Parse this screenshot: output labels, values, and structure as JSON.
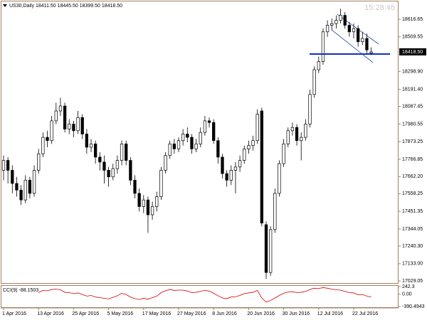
{
  "chart_data": {
    "type": "candlestick",
    "header": "US30,Daily  18411.50 18445.50 18399.50 18418.50",
    "clock": "15:28:46",
    "ylim": [
      17016,
      18724.5
    ],
    "yticks": [
      18616.65,
      18509.55,
      {
        "value": 18298.9,
        "label": "18298.90"
      },
      {
        "value": 18191.4,
        "label": "18191.40"
      },
      18087.45,
      17980.55,
      17873.25,
      17766.85,
      {
        "value": 17662.2,
        "label": "17662.20"
      },
      17558.25,
      17451.35,
      17344.05,
      {
        "value": 17240.3,
        "label": "17240.30"
      },
      {
        "value": 17133,
        "label": "17133.00"
      },
      17029.05
    ],
    "current_price": {
      "value": 18418.5,
      "label": "18418.50"
    },
    "support_level": 18405,
    "bull_color": "#ffffff",
    "bear_color": "#000000",
    "categories": [
      "1 Apr 2016",
      null,
      null,
      null,
      null,
      null,
      null,
      null,
      "13 Apr 2016",
      null,
      null,
      null,
      null,
      null,
      null,
      null,
      "25 Apr 2016",
      null,
      null,
      null,
      null,
      null,
      null,
      null,
      "5 May 2016",
      null,
      null,
      null,
      null,
      null,
      null,
      null,
      "17 May 2016",
      null,
      null,
      null,
      null,
      null,
      null,
      null,
      "27 May 2016",
      null,
      null,
      null,
      null,
      null,
      null,
      null,
      "8 Jun 2016",
      null,
      null,
      null,
      null,
      null,
      null,
      null,
      "20 Jun 2016",
      null,
      null,
      null,
      null,
      null,
      null,
      null,
      "30 Jun 2016",
      null,
      null,
      null,
      null,
      null,
      null,
      null,
      "12 Jul 2016",
      null,
      null,
      null,
      null,
      null,
      null,
      null,
      "22 Jul 2016",
      null,
      null,
      null,
      null
    ],
    "ohlc": [
      [
        17700,
        17790,
        17640,
        17760
      ],
      [
        17760,
        17780,
        17620,
        17700
      ],
      [
        17700,
        17730,
        17560,
        17620
      ],
      [
        17620,
        17660,
        17540,
        17580
      ],
      [
        17580,
        17610,
        17490,
        17520
      ],
      [
        17520,
        17670,
        17500,
        17640
      ],
      [
        17640,
        17660,
        17530,
        17560
      ],
      [
        17560,
        17730,
        17540,
        17700
      ],
      [
        17700,
        17830,
        17680,
        17800
      ],
      [
        17800,
        17930,
        17780,
        17900
      ],
      [
        17900,
        17940,
        17840,
        17880
      ],
      [
        17880,
        18030,
        17860,
        18000
      ],
      [
        18000,
        18110,
        17980,
        18060
      ],
      [
        18060,
        18140,
        18030,
        18090
      ],
      [
        18090,
        18110,
        17930,
        17950
      ],
      [
        17950,
        18010,
        17920,
        17980
      ],
      [
        17980,
        18000,
        17900,
        17940
      ],
      [
        17940,
        18060,
        17920,
        18020
      ],
      [
        18020,
        18040,
        17890,
        17920
      ],
      [
        17920,
        17950,
        17800,
        17840
      ],
      [
        17840,
        17890,
        17810,
        17860
      ],
      [
        17860,
        17880,
        17740,
        17780
      ],
      [
        17780,
        17810,
        17700,
        17750
      ],
      [
        17750,
        17790,
        17620,
        17700
      ],
      [
        17700,
        17720,
        17600,
        17660
      ],
      [
        17660,
        17740,
        17640,
        17710
      ],
      [
        17710,
        17790,
        17680,
        17760
      ],
      [
        17760,
        17880,
        17730,
        17860
      ],
      [
        17860,
        17880,
        17730,
        17760
      ],
      [
        17760,
        17780,
        17610,
        17640
      ],
      [
        17640,
        17670,
        17530,
        17560
      ],
      [
        17560,
        17590,
        17450,
        17480
      ],
      [
        17480,
        17550,
        17440,
        17520
      ],
      [
        17520,
        17540,
        17320,
        17430
      ],
      [
        17430,
        17510,
        17400,
        17480
      ],
      [
        17480,
        17570,
        17450,
        17540
      ],
      [
        17540,
        17720,
        17520,
        17700
      ],
      [
        17700,
        17810,
        17680,
        17790
      ],
      [
        17790,
        17880,
        17770,
        17860
      ],
      [
        17860,
        17890,
        17800,
        17830
      ],
      [
        17830,
        17900,
        17810,
        17880
      ],
      [
        17880,
        17950,
        17850,
        17920
      ],
      [
        17920,
        17960,
        17870,
        17900
      ],
      [
        17900,
        17920,
        17800,
        17830
      ],
      [
        17830,
        17890,
        17810,
        17860
      ],
      [
        17860,
        17960,
        17840,
        17930
      ],
      [
        17930,
        18030,
        17910,
        18000
      ],
      [
        18000,
        18020,
        17960,
        17990
      ],
      [
        17990,
        18010,
        17860,
        17880
      ],
      [
        17880,
        17900,
        17740,
        17780
      ],
      [
        17780,
        17800,
        17650,
        17680
      ],
      [
        17680,
        17700,
        17600,
        17640
      ],
      [
        17640,
        17730,
        17610,
        17700
      ],
      [
        17700,
        17750,
        17560,
        17720
      ],
      [
        17720,
        17790,
        17690,
        17760
      ],
      [
        17760,
        17850,
        17740,
        17830
      ],
      [
        17830,
        17880,
        17800,
        17850
      ],
      [
        17850,
        17910,
        17820,
        17880
      ],
      [
        17880,
        18070,
        17860,
        18040
      ],
      [
        18060,
        18080,
        17360,
        17380
      ],
      [
        17370,
        17390,
        17040,
        17080
      ],
      [
        17080,
        17360,
        17060,
        17340
      ],
      [
        17340,
        17590,
        17320,
        17560
      ],
      [
        17560,
        17760,
        17540,
        17740
      ],
      [
        17740,
        17890,
        17720,
        17860
      ],
      [
        17860,
        17960,
        17840,
        17940
      ],
      [
        17940,
        17990,
        17910,
        17960
      ],
      [
        17960,
        17980,
        17850,
        17880
      ],
      [
        17880,
        17930,
        17760,
        17900
      ],
      [
        17900,
        18010,
        17880,
        17980
      ],
      [
        17980,
        18190,
        17960,
        18160
      ],
      [
        18160,
        18330,
        18140,
        18310
      ],
      [
        18310,
        18390,
        18290,
        18360
      ],
      [
        18360,
        18560,
        18340,
        18540
      ],
      [
        18540,
        18610,
        18510,
        18580
      ],
      [
        18580,
        18620,
        18550,
        18590
      ],
      [
        18590,
        18640,
        18560,
        18610
      ],
      [
        18610,
        18680,
        18590,
        18640
      ],
      [
        18640,
        18660,
        18560,
        18580
      ],
      [
        18580,
        18600,
        18510,
        18540
      ],
      [
        18540,
        18590,
        18500,
        18560
      ],
      [
        18560,
        18580,
        18450,
        18480
      ],
      [
        18480,
        18540,
        18460,
        18500
      ],
      [
        18500,
        18530,
        18410,
        18430
      ],
      [
        18411.5,
        18445.5,
        18399.5,
        18418.5
      ]
    ],
    "indicator": {
      "label": "CCI(9) -88.1503",
      "color": "#d00000",
      "ylim": [
        -390.4943,
        242.3
      ],
      "yticks": [
        242.3,
        {
          "value": 0,
          "label": "0.00"
        },
        -390.4943
      ],
      "values": [
        null,
        null,
        null,
        null,
        null,
        null,
        null,
        null,
        50,
        120,
        110,
        150,
        160,
        140,
        60,
        50,
        20,
        40,
        -10,
        -60,
        -40,
        -90,
        -110,
        -130,
        -150,
        -100,
        -50,
        30,
        -10,
        -90,
        -140,
        -170,
        -130,
        -160,
        -110,
        -60,
        50,
        110,
        150,
        120,
        130,
        130,
        100,
        50,
        60,
        90,
        120,
        100,
        30,
        -50,
        -120,
        -140,
        -90,
        -80,
        -40,
        20,
        40,
        60,
        120,
        -120,
        -250,
        -200,
        -120,
        -40,
        30,
        70,
        80,
        50,
        60,
        90,
        150,
        190,
        180,
        210,
        190,
        160,
        140,
        130,
        90,
        50,
        40,
        -20,
        -10,
        -60,
        -88.1503
      ]
    }
  }
}
